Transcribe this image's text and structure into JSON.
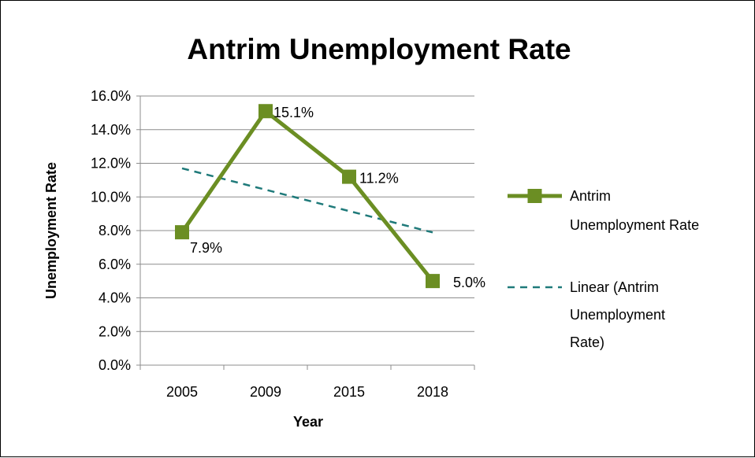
{
  "chart_data": {
    "type": "line",
    "title": "Antrim Unemployment Rate",
    "xlabel": "Year",
    "ylabel": "Unemployment Rate",
    "categories": [
      "2005",
      "2009",
      "2015",
      "2018"
    ],
    "ylim": [
      0,
      16
    ],
    "yticks": [
      0,
      2,
      4,
      6,
      8,
      10,
      12,
      14,
      16
    ],
    "ytick_labels": [
      "0.0%",
      "2.0%",
      "4.0%",
      "6.0%",
      "8.0%",
      "10.0%",
      "12.0%",
      "14.0%",
      "16.0%"
    ],
    "grid": true,
    "legend_position": "right",
    "series": [
      {
        "name": "Antrim Unemployment Rate",
        "values": [
          7.9,
          15.1,
          11.2,
          5.0
        ],
        "data_labels": [
          "7.9%",
          "15.1%",
          "11.2%",
          "5.0%"
        ],
        "color": "#6B8E23",
        "marker": "square"
      }
    ],
    "trendline": {
      "name": "Linear (Antrim Unemployment Rate)",
      "type": "linear",
      "values": [
        11.7,
        10.43,
        9.16,
        7.89
      ],
      "color": "#1F7A7A",
      "dash": "dashed"
    },
    "legend": [
      [
        "Antrim",
        "Unemployment Rate"
      ],
      [
        "Linear (Antrim",
        "Unemployment",
        "Rate)"
      ]
    ]
  }
}
